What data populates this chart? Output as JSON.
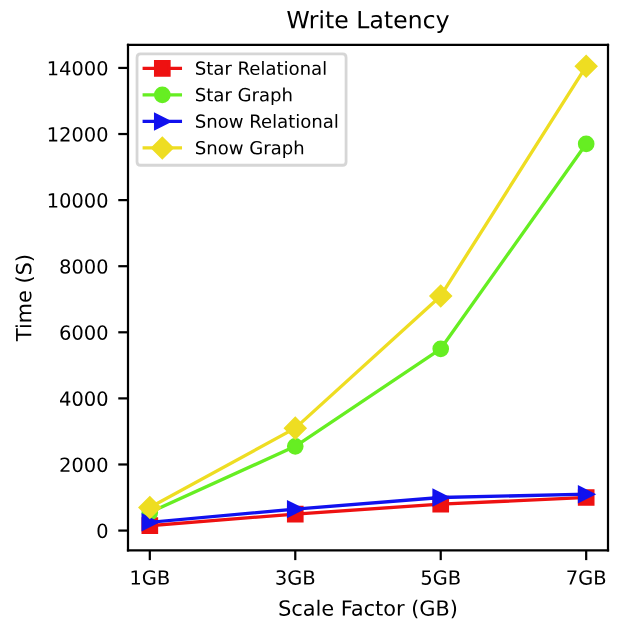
{
  "chart_data": {
    "type": "line",
    "title": "Write Latency",
    "xlabel": "Scale Factor (GB)",
    "ylabel": "Time (S)",
    "categories": [
      "1GB",
      "3GB",
      "5GB",
      "7GB"
    ],
    "series": [
      {
        "name": "Star Relational",
        "color": "#ee1111",
        "marker": "square",
        "values": [
          150,
          500,
          800,
          1000
        ]
      },
      {
        "name": "Star Graph",
        "color": "#66ee22",
        "marker": "circle",
        "values": [
          550,
          2550,
          5500,
          11700
        ]
      },
      {
        "name": "Snow Relational",
        "color": "#1111ee",
        "marker": "triangle",
        "values": [
          250,
          650,
          1000,
          1100
        ]
      },
      {
        "name": "Snow Graph",
        "color": "#eedd22",
        "marker": "diamond",
        "values": [
          700,
          3100,
          7100,
          14050
        ]
      }
    ],
    "ylim": [
      -600,
      14700
    ],
    "yticks": [
      0,
      2000,
      4000,
      6000,
      8000,
      10000,
      12000,
      14000
    ],
    "legend": "top left",
    "grid": false,
    "line_style": "solid"
  }
}
